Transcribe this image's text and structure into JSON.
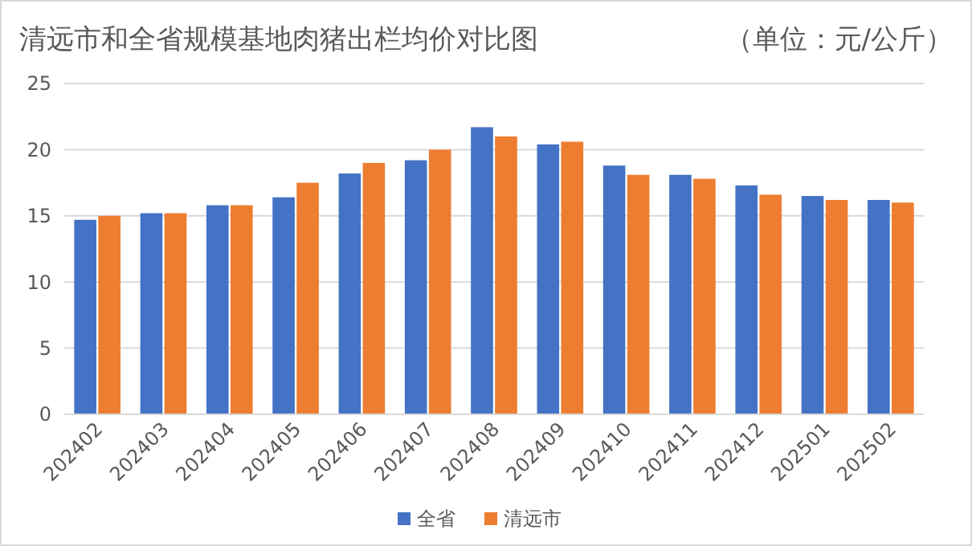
{
  "chart_data": {
    "type": "bar",
    "title": "清远市和全省规模基地肉猪出栏均价对比图",
    "subtitle": "（单位：元/公斤）",
    "categories": [
      "202402",
      "202403",
      "202404",
      "202405",
      "202406",
      "202407",
      "202408",
      "202409",
      "202410",
      "202411",
      "202412",
      "202501",
      "202502"
    ],
    "series": [
      {
        "name": "全省",
        "color": "#4472c4",
        "values": [
          14.7,
          15.2,
          15.8,
          16.4,
          18.2,
          19.2,
          21.7,
          20.4,
          18.8,
          18.1,
          17.3,
          16.5,
          16.2
        ]
      },
      {
        "name": "清远市",
        "color": "#ed7d31",
        "values": [
          15.0,
          15.2,
          15.8,
          17.5,
          19.0,
          20.0,
          21.0,
          20.6,
          18.1,
          17.8,
          16.6,
          16.2,
          16.0
        ]
      }
    ],
    "ylim": [
      0,
      25
    ],
    "yticks": [
      0,
      5,
      10,
      15,
      20,
      25
    ],
    "grid": "y",
    "legend": "bottom"
  }
}
